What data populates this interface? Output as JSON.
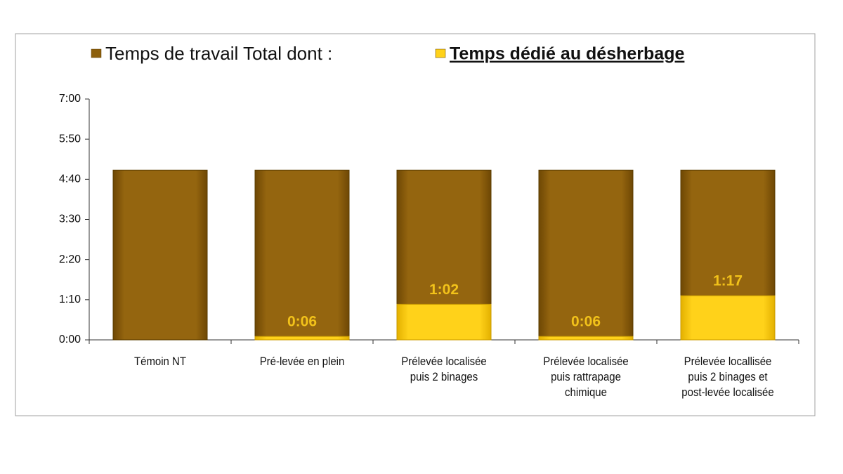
{
  "chart_data": {
    "type": "bar",
    "overlap": true,
    "categories": [
      "Témoin NT",
      "Pré-levée en plein",
      "Prélevée localisée\npuis 2 binages",
      "Prélevée localisée\npuis rattrapage\nchimique",
      "Prélevée locallisée\npuis 2 binages et\npost-levée localisée"
    ],
    "series": [
      {
        "name": "Temps de travail Total dont :",
        "color": "#8c5f0c",
        "values": [
          296,
          296,
          296,
          296,
          296
        ]
      },
      {
        "name": "Temps dédié au désherbage",
        "color": "#ffd21a",
        "values": [
          null,
          6,
          62,
          6,
          77
        ],
        "value_labels": [
          null,
          "0:06",
          "1:02",
          "0:06",
          "1:17"
        ]
      }
    ],
    "ylim": [
      0,
      420
    ],
    "yticks": [
      {
        "value": 0,
        "label": "0:00"
      },
      {
        "value": 70,
        "label": "1:10"
      },
      {
        "value": 140,
        "label": "2:20"
      },
      {
        "value": 210,
        "label": "3:30"
      },
      {
        "value": 280,
        "label": "4:40"
      },
      {
        "value": 350,
        "label": "5:50"
      },
      {
        "value": 420,
        "label": "7:00"
      }
    ],
    "grid": false
  }
}
